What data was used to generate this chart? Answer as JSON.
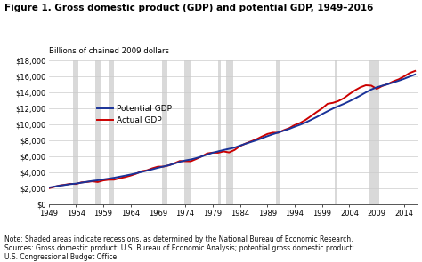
{
  "title": "Figure 1. Gross domestic product (GDP) and potential GDP, 1949–2016",
  "ylabel": "Billions of chained 2009 dollars",
  "xlim": [
    1949,
    2016.5
  ],
  "ylim": [
    0,
    18000
  ],
  "yticks": [
    0,
    2000,
    4000,
    6000,
    8000,
    10000,
    12000,
    14000,
    16000,
    18000
  ],
  "xticks": [
    1949,
    1954,
    1959,
    1964,
    1969,
    1974,
    1979,
    1984,
    1989,
    1994,
    1999,
    2004,
    2009,
    2014
  ],
  "recession_bands": [
    [
      1953.5,
      1954.5
    ],
    [
      1957.5,
      1958.5
    ],
    [
      1960.0,
      1961.0
    ],
    [
      1969.75,
      1970.75
    ],
    [
      1973.75,
      1975.0
    ],
    [
      1980.0,
      1980.5
    ],
    [
      1981.5,
      1982.75
    ],
    [
      1990.5,
      1991.25
    ],
    [
      2001.25,
      2001.75
    ],
    [
      2007.75,
      2009.5
    ]
  ],
  "recession_color": "#d9d9d9",
  "potential_gdp_color": "#1a3399",
  "actual_gdp_color": "#cc0000",
  "line_width": 1.4,
  "background_color": "#ffffff",
  "plot_bg_color": "#ffffff",
  "grid_color": "#cccccc",
  "note_text": "Note: Shaded areas indicate recessions, as determined by the National Bureau of Economic Research.\nSources: Gross domestic product: U.S. Bureau of Economic Analysis; potential gross domestic product:\nU.S. Congressional Budget Office.",
  "potential_gdp": {
    "years": [
      1949,
      1950,
      1951,
      1952,
      1953,
      1954,
      1955,
      1956,
      1957,
      1958,
      1959,
      1960,
      1961,
      1962,
      1963,
      1964,
      1965,
      1966,
      1967,
      1968,
      1969,
      1970,
      1971,
      1972,
      1973,
      1974,
      1975,
      1976,
      1977,
      1978,
      1979,
      1980,
      1981,
      1982,
      1983,
      1984,
      1985,
      1986,
      1987,
      1988,
      1989,
      1990,
      1991,
      1992,
      1993,
      1994,
      1995,
      1996,
      1997,
      1998,
      1999,
      2000,
      2001,
      2002,
      2003,
      2004,
      2005,
      2006,
      2007,
      2008,
      2009,
      2010,
      2011,
      2012,
      2013,
      2014,
      2015,
      2016
    ],
    "values": [
      2100,
      2220,
      2340,
      2430,
      2530,
      2600,
      2710,
      2820,
      2930,
      3010,
      3120,
      3220,
      3330,
      3460,
      3590,
      3730,
      3880,
      4050,
      4220,
      4390,
      4570,
      4730,
      4890,
      5090,
      5320,
      5490,
      5610,
      5780,
      5990,
      6230,
      6450,
      6620,
      6790,
      6940,
      7090,
      7340,
      7570,
      7790,
      8010,
      8260,
      8520,
      8760,
      8980,
      9200,
      9430,
      9700,
      9950,
      10230,
      10560,
      10900,
      11270,
      11630,
      11970,
      12270,
      12560,
      12880,
      13220,
      13590,
      13980,
      14340,
      14620,
      14820,
      15000,
      15220,
      15440,
      15680,
      15950,
      16220
    ]
  },
  "actual_gdp": {
    "years": [
      1949,
      1950,
      1951,
      1952,
      1953,
      1954,
      1955,
      1956,
      1957,
      1958,
      1959,
      1960,
      1961,
      1962,
      1963,
      1964,
      1965,
      1966,
      1967,
      1968,
      1969,
      1970,
      1971,
      1972,
      1973,
      1974,
      1975,
      1976,
      1977,
      1978,
      1979,
      1980,
      1981,
      1982,
      1983,
      1984,
      1985,
      1986,
      1987,
      1988,
      1989,
      1990,
      1991,
      1992,
      1993,
      1994,
      1995,
      1996,
      1997,
      1998,
      1999,
      2000,
      2001,
      2002,
      2003,
      2004,
      2005,
      2006,
      2007,
      2008,
      2009,
      2010,
      2011,
      2012,
      2013,
      2014,
      2015,
      2016
    ],
    "values": [
      2008,
      2184,
      2360,
      2456,
      2572,
      2547,
      2750,
      2803,
      2881,
      2793,
      2993,
      3080,
      3087,
      3271,
      3412,
      3600,
      3828,
      4146,
      4259,
      4516,
      4712,
      4722,
      4877,
      5134,
      5424,
      5396,
      5385,
      5675,
      5992,
      6367,
      6466,
      6450,
      6617,
      6491,
      6792,
      7285,
      7594,
      7861,
      8133,
      8475,
      8786,
      8955,
      8948,
      9266,
      9521,
      9905,
      10174,
      10561,
      11035,
      11526,
      11983,
      12560,
      12682,
      12909,
      13271,
      13774,
      14235,
      14615,
      14874,
      14830,
      14419,
      14784,
      15021,
      15355,
      15612,
      15982,
      16397,
      16662
    ]
  }
}
